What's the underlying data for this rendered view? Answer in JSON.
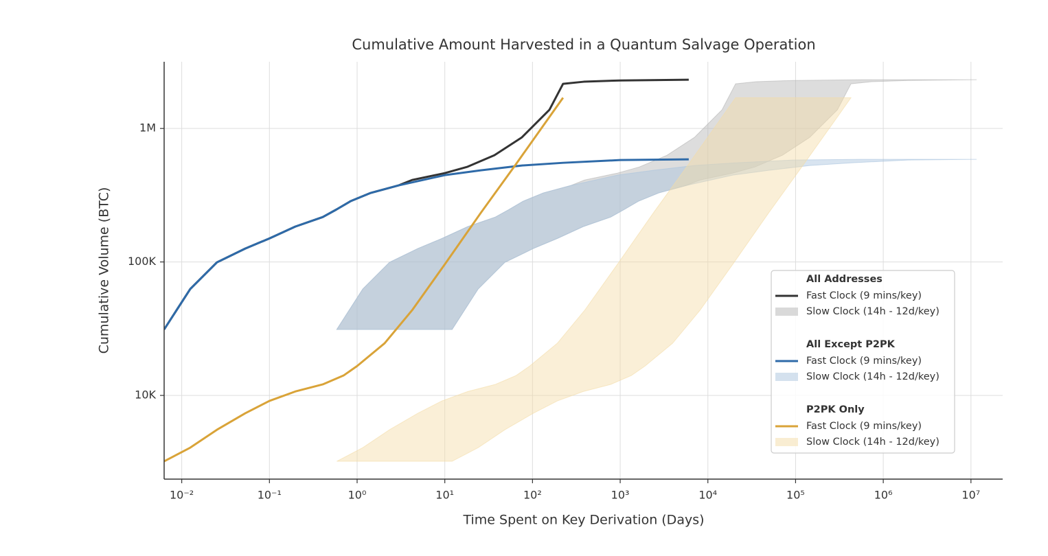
{
  "chart_data": {
    "type": "line",
    "title": "Cumulative Amount Harvested in a Quantum Salvage Operation",
    "x_label": "Time Spent on Key Derivation (Days)",
    "y_label": "Cumulative Volume (BTC)",
    "log_x": true,
    "log_y": true,
    "grid": true,
    "legend": "lower right",
    "xlim": [
      0.0063,
      23000000
    ],
    "ylim": [
      2360,
      3160000
    ],
    "xticks": [
      {
        "value": 0.01,
        "label": "10⁻²"
      },
      {
        "value": 0.1,
        "label": "10⁻¹"
      },
      {
        "value": 1,
        "label": "10⁰"
      },
      {
        "value": 10,
        "label": "10¹"
      },
      {
        "value": 100,
        "label": "10²"
      },
      {
        "value": 1000,
        "label": "10³"
      },
      {
        "value": 10000,
        "label": "10⁴"
      },
      {
        "value": 100000,
        "label": "10⁵"
      },
      {
        "value": 1000000,
        "label": "10⁶"
      },
      {
        "value": 10000000,
        "label": "10⁷"
      }
    ],
    "yticks": [
      {
        "value": 10000,
        "label": "10K"
      },
      {
        "value": 100000,
        "label": "100K"
      },
      {
        "value": 1000000,
        "label": "1M"
      }
    ],
    "groups": [
      {
        "title": "All Addresses",
        "color": "#333333",
        "band_color": "#b4b4b4",
        "fast": {
          "name": "Fast Clock (9 mins/key)",
          "x": [
            0.0063,
            0.0125,
            0.0252,
            0.053,
            0.1,
            0.197,
            0.406,
            0.58,
            0.84,
            1.43,
            2.95,
            4.23,
            10,
            17.9,
            36.8,
            75.7,
            156,
            223,
            384,
            1000,
            6050
          ],
          "y": [
            31200,
            62700,
            99300,
            126000,
            150000,
            184000,
            217000,
            247000,
            285000,
            329000,
            374000,
            411000,
            463000,
            515000,
            630000,
            858000,
            1380000,
            2160000,
            2240000,
            2290000,
            2320000
          ]
        },
        "slow": {
          "name": "Slow Clock (14h - 12d/key)",
          "y": [
            31200,
            62700,
            99300,
            126000,
            150000,
            184000,
            217000,
            247000,
            285000,
            329000,
            374000,
            411000,
            463000,
            515000,
            630000,
            858000,
            1380000,
            2160000,
            2240000,
            2290000,
            2320000
          ],
          "x_low": [
            0.586,
            1.16,
            2.34,
            4.93,
            9.3,
            18.3,
            37.8,
            53.9,
            78.1,
            133,
            274,
            393,
            930,
            1660,
            3420,
            7040,
            14500,
            20700,
            35700,
            93000,
            563000
          ],
          "x_high": [
            12.1,
            24,
            48.4,
            102,
            192,
            378,
            780,
            1110,
            1610,
            2750,
            5660,
            8120,
            19200,
            34400,
            70700,
            145000,
            300000,
            428000,
            737000,
            1920000,
            11600000
          ]
        }
      },
      {
        "title": "All Except P2PK",
        "color": "#2e6aa8",
        "band_color": "#a9c3de",
        "fast": {
          "name": "Fast Clock (9 mins/key)",
          "x": [
            0.0063,
            0.0125,
            0.0252,
            0.053,
            0.1,
            0.197,
            0.406,
            0.58,
            0.84,
            1.43,
            2.95,
            10,
            25.7,
            75.7,
            223,
            1000,
            6050
          ],
          "y": [
            31200,
            62700,
            99300,
            126000,
            150000,
            184000,
            217000,
            247000,
            285000,
            329000,
            374000,
            447000,
            486000,
            528000,
            553000,
            580000,
            587000
          ]
        },
        "slow": {
          "name": "Slow Clock (14h - 12d/key)",
          "y": [
            31200,
            62700,
            99300,
            126000,
            150000,
            184000,
            217000,
            247000,
            285000,
            329000,
            374000,
            447000,
            486000,
            528000,
            553000,
            580000,
            587000
          ],
          "x_low": [
            0.586,
            1.16,
            2.34,
            4.93,
            9.3,
            18.3,
            37.8,
            53.9,
            78.1,
            133,
            274,
            930,
            2390,
            7040,
            20700,
            93000,
            563000
          ],
          "x_high": [
            12.1,
            24,
            48.4,
            102,
            192,
            378,
            780,
            1110,
            1610,
            2750,
            5660,
            19200,
            49300,
            145000,
            428000,
            1920000,
            11600000
          ]
        }
      },
      {
        "title": "P2PK Only",
        "color": "#d9a338",
        "band_color": "#f3dca6",
        "fast": {
          "name": "Fast Clock (9 mins/key)",
          "x": [
            0.0063,
            0.0125,
            0.0252,
            0.053,
            0.1,
            0.197,
            0.406,
            0.7,
            1,
            2.06,
            4.23,
            10,
            25.7,
            63.2,
            156,
            223
          ],
          "y": [
            3210,
            4060,
            5530,
            7350,
            9100,
            10700,
            12100,
            14100,
            16600,
            24600,
            43400,
            96000,
            233000,
            528000,
            1220000,
            1700000
          ]
        },
        "slow": {
          "name": "Slow Clock (14h - 12d/key)",
          "y": [
            3210,
            4060,
            5530,
            7350,
            9100,
            10700,
            12100,
            14100,
            16600,
            24600,
            43400,
            96000,
            233000,
            528000,
            1220000,
            1700000
          ],
          "x_low": [
            0.586,
            1.16,
            2.34,
            4.93,
            9.3,
            18.3,
            37.8,
            65.1,
            93,
            192,
            393,
            930,
            2390,
            5880,
            14500,
            20700
          ],
          "x_high": [
            12.1,
            24,
            48.4,
            102,
            192,
            378,
            780,
            1340,
            1920,
            3960,
            8120,
            19200,
            49300,
            121000,
            300000,
            428000
          ]
        }
      }
    ]
  }
}
